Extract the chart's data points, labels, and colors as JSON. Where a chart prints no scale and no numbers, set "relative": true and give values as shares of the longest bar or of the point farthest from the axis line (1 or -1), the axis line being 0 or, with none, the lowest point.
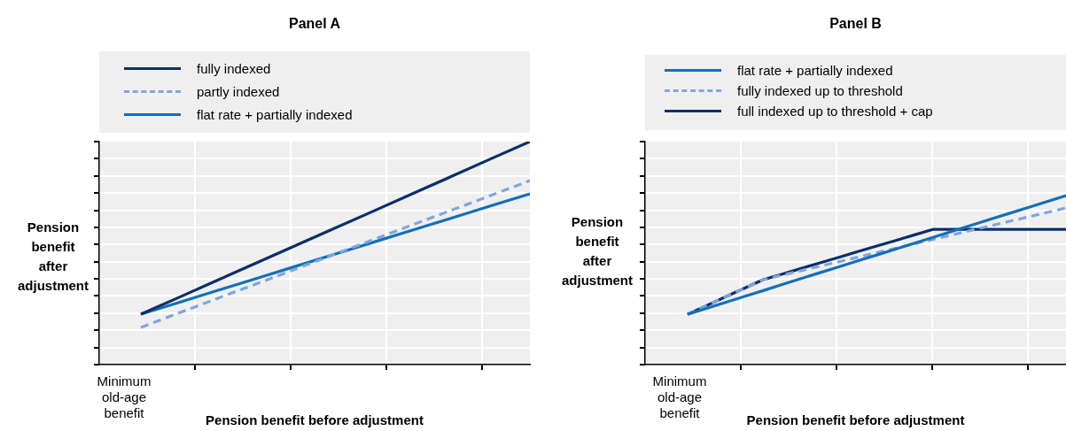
{
  "chart_data": [
    {
      "type": "line",
      "title": "Panel A",
      "xlabel": "Pension benefit before adjustment",
      "ylabel": "Pension benefit after adjustment",
      "relative": true,
      "grid": true,
      "legend": "top",
      "marker": "none",
      "annotations": [
        "Minimum old-age benefit"
      ],
      "categories": [
        null,
        null,
        null,
        null,
        null,
        null,
        null,
        null,
        null,
        null,
        null
      ],
      "series": [
        {
          "name": "fully indexed",
          "color": "#0b2f6b",
          "values": [
            0.226,
            0.303,
            0.381,
            0.458,
            0.536,
            0.613,
            0.69,
            0.768,
            0.845,
            0.923,
            1
          ]
        },
        {
          "name": "partly indexed",
          "color": "#7fa6dc",
          "line_style": "dashed",
          "values": [
            0.167,
            0.233,
            0.299,
            0.364,
            0.43,
            0.496,
            0.562,
            0.628,
            0.693,
            0.759,
            0.825
          ]
        },
        {
          "name": "flat rate + partially indexed",
          "color": "#1470b8",
          "values": [
            0.226,
            0.28,
            0.334,
            0.388,
            0.442,
            0.496,
            0.55,
            0.604,
            0.658,
            0.712,
            0.766
          ]
        }
      ]
    },
    {
      "type": "line",
      "title": "Panel B",
      "xlabel": "Pension benefit before adjustment",
      "ylabel": "Pension benefit after adjustment",
      "relative": true,
      "grid": true,
      "legend": "top",
      "marker": "none",
      "annotations": [
        "Minimum old-age benefit"
      ],
      "categories": [
        null,
        null,
        null,
        null,
        null,
        null,
        null,
        null,
        null,
        null,
        null,
        null,
        null,
        null,
        null,
        null,
        null,
        null,
        null,
        null,
        null
      ],
      "series": [
        {
          "name": "flat rate + partially indexed",
          "color": "#1470b8",
          "values": [
            0.298,
            0.333,
            0.368,
            0.403,
            0.438,
            0.474,
            0.509,
            0.544,
            0.579,
            0.614,
            0.649,
            0.684,
            0.719,
            0.754,
            0.79,
            0.825,
            0.86,
            0.895,
            0.93,
            0.965,
            1
          ]
        },
        {
          "name": "fully indexed up to threshold",
          "color": "#7fa6dc",
          "line_style": "dashed",
          "values": [
            0.298,
            0.349,
            0.401,
            0.452,
            0.503,
            0.53,
            0.556,
            0.583,
            0.609,
            0.636,
            0.662,
            0.689,
            0.715,
            0.742,
            0.768,
            0.795,
            0.821,
            0.848,
            0.874,
            0.901,
            0.927
          ]
        },
        {
          "name": "full indexed up to threshold + cap",
          "color": "#0b2f6b",
          "values": [
            0.298,
            0.349,
            0.401,
            0.452,
            0.503,
            0.536,
            0.569,
            0.602,
            0.635,
            0.669,
            0.702,
            0.735,
            0.768,
            0.801,
            0.801,
            0.801,
            0.801,
            0.801,
            0.801,
            0.801,
            0.801
          ]
        }
      ]
    }
  ]
}
